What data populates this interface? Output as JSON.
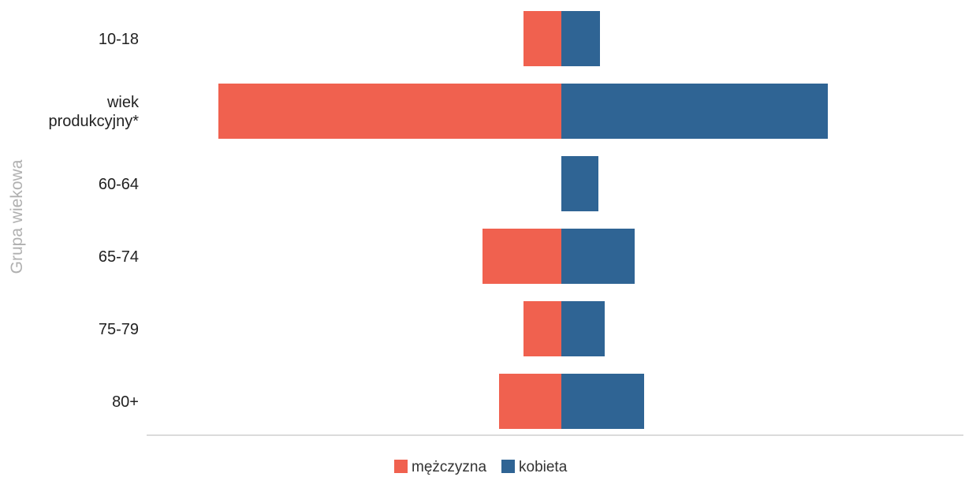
{
  "chart_data": {
    "type": "bar",
    "orientation": "horizontal",
    "stacking": "diverging",
    "ylabel": "Grupa wiekowa",
    "categories": [
      [
        "10-18"
      ],
      [
        "wiek",
        "produkcyjny*"
      ],
      [
        "60-64"
      ],
      [
        "65-74"
      ],
      [
        "75-79"
      ],
      [
        "80+"
      ]
    ],
    "series": [
      {
        "name": "mężczyzna",
        "color": "#f0614f",
        "values": [
          48,
          435,
          0,
          100,
          48,
          79
        ]
      },
      {
        "name": "kobieta",
        "color": "#2f6494",
        "values": [
          49,
          338,
          47,
          93,
          55,
          105
        ]
      }
    ],
    "grid": false,
    "legend_position": "bottom-center"
  }
}
